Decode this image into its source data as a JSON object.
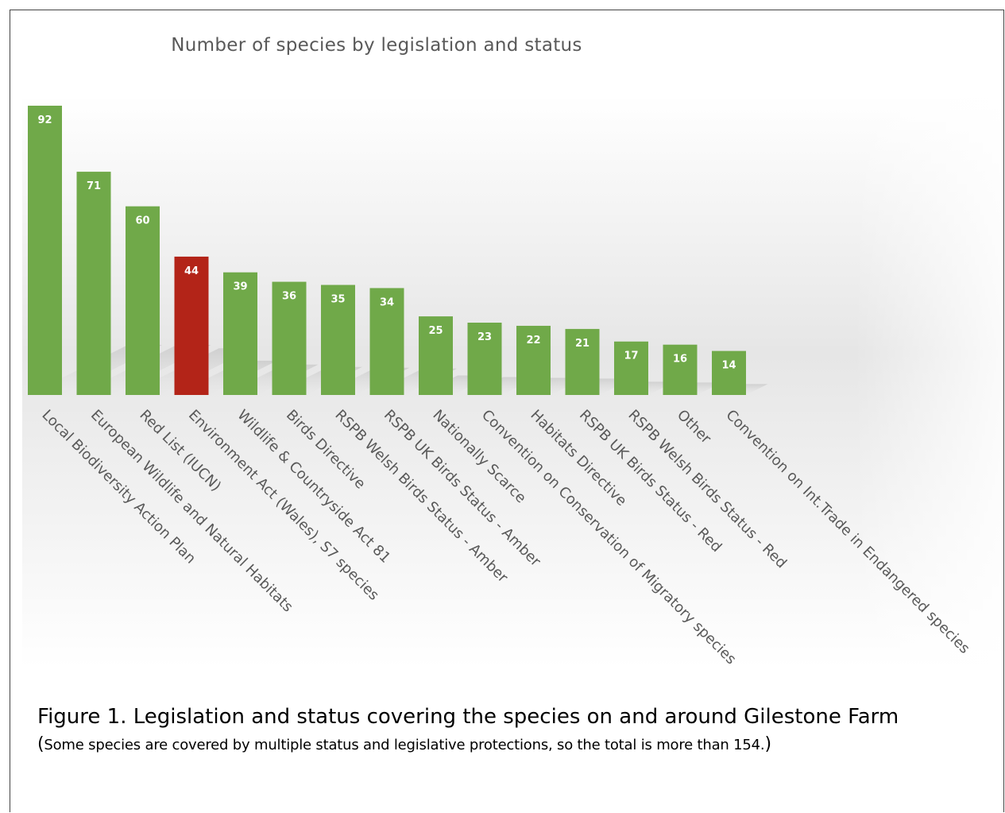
{
  "chart_data": {
    "type": "bar",
    "title": "Number of species by legislation and status",
    "xlabel": "",
    "ylabel": "",
    "ylim": [
      0,
      92
    ],
    "grid": false,
    "legend": "none",
    "bar_color": "#70a949",
    "highlight_color": "#b32418",
    "highlight_index": 3,
    "categories": [
      "Local Biodiversity Action Plan",
      "European Wildlife and Natural Habitats",
      "Red List (IUCN)",
      "Environment Act (Wales), S7 species",
      "Wildlife & Countryside Act 81",
      "Birds Directive",
      "RSPB Welsh Birds Status - Amber",
      "RSPB UK Birds Status - Amber",
      "Nationally Scarce",
      "Convention on Conservation of Migratory species",
      "Habitats Directive",
      "RSPB UK Birds Status - Red",
      "RSPB Welsh Birds Status - Red",
      "Other",
      "Convention on Int.Trade in Endangered species"
    ],
    "values": [
      92,
      71,
      60,
      44,
      39,
      36,
      35,
      34,
      25,
      23,
      22,
      21,
      17,
      16,
      14
    ]
  },
  "caption": {
    "main": "Figure 1. Legislation and status covering the species on and around Gilestone Farm",
    "open_paren": "(",
    "note": "Some species are covered by multiple status and legislative protections, so the total is more than 154.",
    "close_paren": ")"
  }
}
